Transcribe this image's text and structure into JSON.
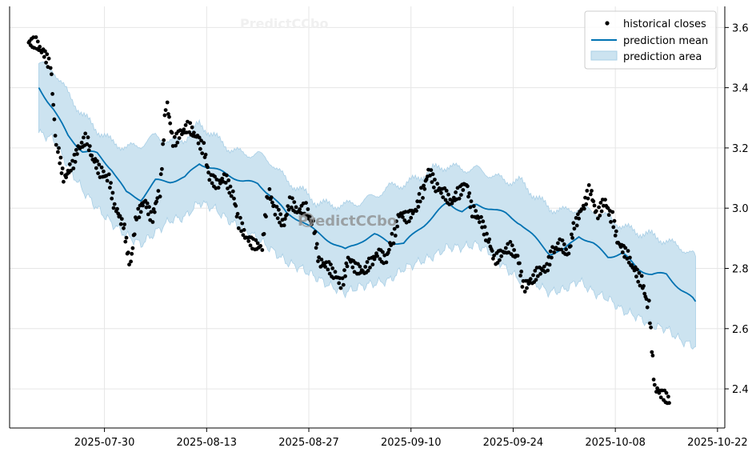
{
  "chart_data": {
    "type": "line",
    "title": "",
    "xlabel": "",
    "ylabel": "",
    "x_axis": {
      "type": "date",
      "range": [
        "2025-07-17",
        "2025-10-23"
      ],
      "ticks": [
        "2025-07-30",
        "2025-08-13",
        "2025-08-27",
        "2025-09-10",
        "2025-09-24",
        "2025-10-08",
        "2025-10-22"
      ]
    },
    "y_axis": {
      "position": "right",
      "range": [
        2.27,
        3.67
      ],
      "ticks": [
        2.4,
        2.6,
        2.8,
        3.0,
        3.2,
        3.4,
        3.6
      ],
      "tick_labels": [
        "2.4",
        "2.6",
        "2.8",
        "3.0",
        "3.2",
        "3.4",
        "3.6"
      ]
    },
    "grid": true,
    "legend": {
      "position": "top-right",
      "entries": [
        {
          "label": "historical closes",
          "kind": "marker"
        },
        {
          "label": "prediction mean",
          "kind": "line"
        },
        {
          "label": "prediction area",
          "kind": "area"
        }
      ]
    },
    "watermark": "PredictCCbo",
    "colors": {
      "points": "#000000",
      "mean": "#0072B2",
      "area_fill": "#cce3f0",
      "area_edge": "#a9cfe6",
      "grid": "#e6e6e6"
    },
    "series": [
      {
        "name": "prediction mean",
        "kind": "line",
        "x": [
          "2025-07-21",
          "2025-07-23",
          "2025-07-25",
          "2025-07-27",
          "2025-07-29",
          "2025-07-31",
          "2025-08-02",
          "2025-08-04",
          "2025-08-06",
          "2025-08-08",
          "2025-08-10",
          "2025-08-12",
          "2025-08-14",
          "2025-08-16",
          "2025-08-18",
          "2025-08-20",
          "2025-08-22",
          "2025-08-24",
          "2025-08-26",
          "2025-08-28",
          "2025-08-30",
          "2025-09-01",
          "2025-09-03",
          "2025-09-05",
          "2025-09-07",
          "2025-09-09",
          "2025-09-11",
          "2025-09-13",
          "2025-09-15",
          "2025-09-17",
          "2025-09-19",
          "2025-09-21",
          "2025-09-23",
          "2025-09-25",
          "2025-09-27",
          "2025-09-29",
          "2025-10-01",
          "2025-10-03",
          "2025-10-05",
          "2025-10-07",
          "2025-10-09",
          "2025-10-11",
          "2025-10-13",
          "2025-10-15",
          "2025-10-17",
          "2025-10-19"
        ],
        "y": [
          3.4,
          3.33,
          3.24,
          3.19,
          3.18,
          3.13,
          3.05,
          3.03,
          3.09,
          3.09,
          3.1,
          3.15,
          3.13,
          3.11,
          3.09,
          3.08,
          3.04,
          2.98,
          2.96,
          2.92,
          2.89,
          2.86,
          2.89,
          2.91,
          2.89,
          2.88,
          2.93,
          2.97,
          3.02,
          2.99,
          3.01,
          3.0,
          2.98,
          2.95,
          2.9,
          2.85,
          2.86,
          2.91,
          2.88,
          2.84,
          2.85,
          2.8,
          2.78,
          2.78,
          2.73,
          2.69
        ]
      },
      {
        "name": "prediction area",
        "kind": "area",
        "x": [
          "2025-07-21",
          "2025-07-23",
          "2025-07-25",
          "2025-07-27",
          "2025-07-29",
          "2025-07-31",
          "2025-08-02",
          "2025-08-04",
          "2025-08-06",
          "2025-08-08",
          "2025-08-10",
          "2025-08-12",
          "2025-08-14",
          "2025-08-16",
          "2025-08-18",
          "2025-08-20",
          "2025-08-22",
          "2025-08-24",
          "2025-08-26",
          "2025-08-28",
          "2025-08-30",
          "2025-09-01",
          "2025-09-03",
          "2025-09-05",
          "2025-09-07",
          "2025-09-09",
          "2025-09-11",
          "2025-09-13",
          "2025-09-15",
          "2025-09-17",
          "2025-09-19",
          "2025-09-21",
          "2025-09-23",
          "2025-09-25",
          "2025-09-27",
          "2025-09-29",
          "2025-10-01",
          "2025-10-03",
          "2025-10-05",
          "2025-10-07",
          "2025-10-09",
          "2025-10-11",
          "2025-10-13",
          "2025-10-15",
          "2025-10-17",
          "2025-10-19"
        ],
        "upper": [
          3.48,
          3.46,
          3.38,
          3.31,
          3.26,
          3.22,
          3.2,
          3.21,
          3.24,
          3.22,
          3.23,
          3.28,
          3.24,
          3.2,
          3.18,
          3.18,
          3.15,
          3.09,
          3.06,
          3.02,
          3.01,
          3.01,
          3.02,
          3.04,
          3.07,
          3.08,
          3.1,
          3.13,
          3.14,
          3.13,
          3.13,
          3.11,
          3.09,
          3.09,
          3.04,
          3.0,
          2.99,
          3.0,
          2.99,
          2.97,
          2.94,
          2.92,
          2.91,
          2.89,
          2.87,
          2.84
        ],
        "lower": [
          3.25,
          3.23,
          3.14,
          3.06,
          3.0,
          2.95,
          2.91,
          2.88,
          2.92,
          2.96,
          2.97,
          3.02,
          3.0,
          2.96,
          2.93,
          2.9,
          2.86,
          2.82,
          2.8,
          2.77,
          2.74,
          2.72,
          2.74,
          2.75,
          2.76,
          2.8,
          2.82,
          2.84,
          2.87,
          2.87,
          2.88,
          2.85,
          2.8,
          2.76,
          2.75,
          2.72,
          2.73,
          2.76,
          2.72,
          2.7,
          2.66,
          2.64,
          2.61,
          2.6,
          2.56,
          2.54
        ]
      },
      {
        "name": "historical closes",
        "kind": "scatter",
        "x": [
          "2025-07-20",
          "2025-07-21",
          "2025-07-22",
          "2025-07-23",
          "2025-07-24",
          "2025-07-25",
          "2025-07-26",
          "2025-07-27",
          "2025-07-28",
          "2025-07-29",
          "2025-07-30",
          "2025-07-31",
          "2025-08-01",
          "2025-08-02",
          "2025-08-03",
          "2025-08-04",
          "2025-08-05",
          "2025-08-06",
          "2025-08-07",
          "2025-08-08",
          "2025-08-09",
          "2025-08-10",
          "2025-08-11",
          "2025-08-12",
          "2025-08-13",
          "2025-08-14",
          "2025-08-15",
          "2025-08-16",
          "2025-08-17",
          "2025-08-18",
          "2025-08-19",
          "2025-08-20",
          "2025-08-21",
          "2025-08-22",
          "2025-08-23",
          "2025-08-24",
          "2025-08-25",
          "2025-08-26",
          "2025-08-27",
          "2025-08-28",
          "2025-08-29",
          "2025-08-30",
          "2025-08-31",
          "2025-09-01",
          "2025-09-02",
          "2025-09-03",
          "2025-09-04",
          "2025-09-05",
          "2025-09-06",
          "2025-09-07",
          "2025-09-08",
          "2025-09-09",
          "2025-09-10",
          "2025-09-11",
          "2025-09-12",
          "2025-09-13",
          "2025-09-14",
          "2025-09-15",
          "2025-09-16",
          "2025-09-17",
          "2025-09-18",
          "2025-09-19",
          "2025-09-20",
          "2025-09-21",
          "2025-09-22",
          "2025-09-23",
          "2025-09-24",
          "2025-09-25",
          "2025-09-26",
          "2025-09-27",
          "2025-09-28",
          "2025-09-29",
          "2025-09-30",
          "2025-10-01",
          "2025-10-02",
          "2025-10-03",
          "2025-10-04",
          "2025-10-05",
          "2025-10-06",
          "2025-10-07",
          "2025-10-08",
          "2025-10-09",
          "2025-10-10",
          "2025-10-11",
          "2025-10-12",
          "2025-10-13",
          "2025-10-14",
          "2025-10-15"
        ],
        "y": [
          3.55,
          3.52,
          3.48,
          3.2,
          3.1,
          3.14,
          3.2,
          3.23,
          3.16,
          3.12,
          3.1,
          3.0,
          2.95,
          2.82,
          2.98,
          3.02,
          2.97,
          3.05,
          3.34,
          3.22,
          3.25,
          3.27,
          3.24,
          3.2,
          3.1,
          3.08,
          3.1,
          3.05,
          2.95,
          2.9,
          2.88,
          2.87,
          3.05,
          2.99,
          2.95,
          3.02,
          2.99,
          3.0,
          2.95,
          2.82,
          2.81,
          2.78,
          2.75,
          2.83,
          2.8,
          2.79,
          2.82,
          2.85,
          2.83,
          2.9,
          2.98,
          2.97,
          2.99,
          3.05,
          3.12,
          3.07,
          3.05,
          3.02,
          3.05,
          3.08,
          2.99,
          2.96,
          2.9,
          2.83,
          2.85,
          2.87,
          2.84,
          2.74,
          2.76,
          2.79,
          2.8,
          2.86,
          2.88,
          2.85,
          2.95,
          3.0,
          3.06,
          2.98,
          3.02,
          2.97,
          2.88,
          2.85,
          2.8,
          2.76,
          2.68,
          2.4,
          2.38,
          2.36
        ]
      }
    ]
  }
}
